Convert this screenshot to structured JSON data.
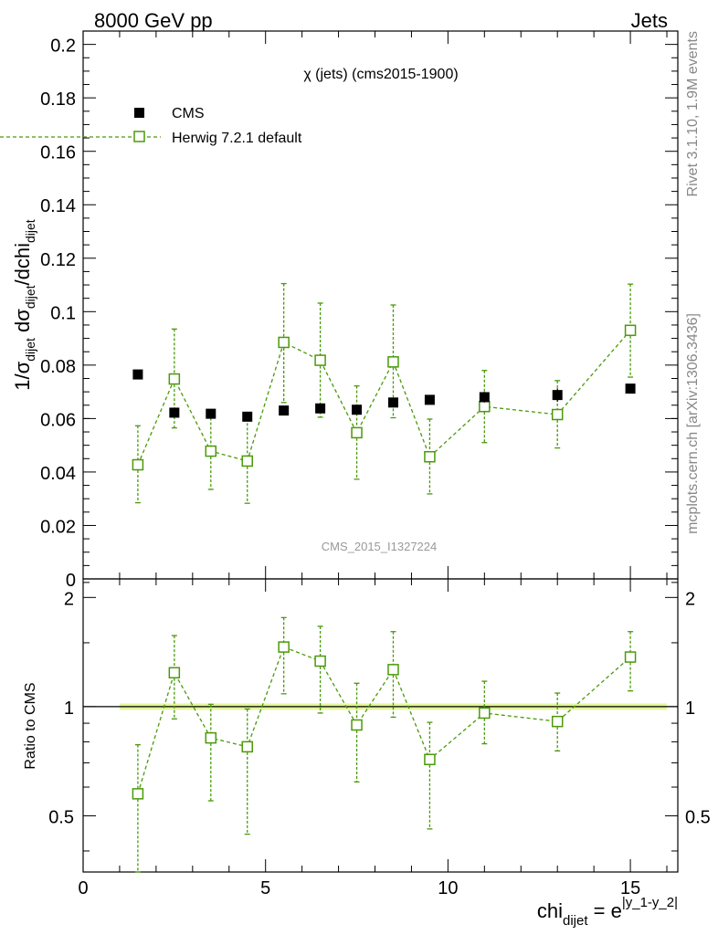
{
  "header": {
    "left": "8000 GeV pp",
    "right": "Jets"
  },
  "side_labels": {
    "rivet": "Rivet 3.1.10,  1.9M events",
    "mcplots": "mcplots.cern.ch [arXiv:1306.3436]"
  },
  "chart_data": [
    {
      "type": "scatter",
      "panel": "main",
      "title": "χ (jets) (cms2015-1900)",
      "ylabel": "1/σ_dijet dσ_dijet/dchi_dijet",
      "ylabel_parts": {
        "a": "1/σ",
        "a_sub": "dijet",
        "b": " dσ",
        "b_sub": "dijet",
        "c": "/dchi",
        "c_sub": "dijet"
      },
      "watermark": "CMS_2015_I1327224",
      "xlim": [
        0,
        16.3
      ],
      "ylim": [
        0,
        0.205
      ],
      "yticks": [
        0,
        0.02,
        0.04,
        0.06,
        0.08,
        0.1,
        0.12,
        0.14,
        0.16,
        0.18,
        0.2
      ],
      "ytick_labels": [
        "0",
        "0.02",
        "0.04",
        "0.06",
        "0.08",
        "0.1",
        "0.12",
        "0.14",
        "0.16",
        "0.18",
        "0.2"
      ],
      "legend_position": "top-left",
      "colors": {
        "cms": "#000000",
        "herwig": "#4a9a0a"
      },
      "series": [
        {
          "name": "CMS",
          "style": "filled-square",
          "x": [
            1.5,
            2.5,
            3.5,
            4.5,
            5.5,
            6.5,
            7.5,
            8.5,
            9.5,
            11.0,
            13.0,
            15.0
          ],
          "y": [
            0.0765,
            0.0622,
            0.0618,
            0.0607,
            0.063,
            0.0638,
            0.0633,
            0.066,
            0.067,
            0.068,
            0.0688,
            0.0712
          ],
          "yerr": [
            0.001,
            0.0015,
            0.0015,
            0.0015,
            0.0015,
            0.0015,
            0.0015,
            0.0018,
            0.0015,
            0.002,
            0.0025,
            0.0015
          ]
        },
        {
          "name": "Herwig 7.2.1 default",
          "style": "open-square-dashed",
          "x": [
            1.5,
            2.5,
            3.5,
            4.5,
            5.5,
            6.5,
            7.5,
            8.5,
            9.5,
            11.0,
            13.0,
            15.0
          ],
          "y": [
            0.0427,
            0.0748,
            0.0478,
            0.0441,
            0.0885,
            0.0818,
            0.0547,
            0.0812,
            0.0457,
            0.0645,
            0.0615,
            0.093
          ],
          "ylo": [
            0.0285,
            0.0565,
            0.0335,
            0.0283,
            0.066,
            0.0605,
            0.0373,
            0.0603,
            0.0318,
            0.051,
            0.049,
            0.0755
          ],
          "yhi": [
            0.0573,
            0.0935,
            0.062,
            0.06,
            0.1105,
            0.1032,
            0.0722,
            0.1025,
            0.0598,
            0.078,
            0.0742,
            0.1103
          ]
        }
      ]
    },
    {
      "type": "scatter",
      "panel": "ratio",
      "ylabel": "Ratio to CMS",
      "xlabel": "chi_dijet = e^|y_1-y_2|",
      "xlabel_parts": {
        "a": "chi",
        "a_sub": "dijet",
        "b": " = e",
        "b_sup": "|y_1-y_2|"
      },
      "xlim": [
        0,
        16.3
      ],
      "ylim": [
        0.35,
        2.25
      ],
      "yticks": [
        0.5,
        1,
        2
      ],
      "ytick_labels": [
        "0.5",
        "1",
        "2"
      ],
      "xticks": [
        0,
        5,
        10,
        15
      ],
      "xtick_labels": [
        "0",
        "5",
        "10",
        "15"
      ],
      "reference": {
        "y": 1,
        "band_lo": 0.98,
        "band_hi": 1.02,
        "x_from": 1.0,
        "x_to": 16.0
      },
      "series": [
        {
          "name": "Herwig 7.2.1 default",
          "x": [
            1.5,
            2.5,
            3.5,
            4.5,
            5.5,
            6.5,
            7.5,
            8.5,
            9.5,
            11.0,
            13.0,
            15.0
          ],
          "y": [
            0.575,
            1.24,
            0.82,
            0.775,
            1.46,
            1.335,
            0.89,
            1.265,
            0.715,
            0.96,
            0.91,
            1.37
          ],
          "ylo": [
            0.35,
            0.925,
            0.55,
            0.445,
            1.085,
            0.96,
            0.62,
            0.935,
            0.46,
            0.79,
            0.755,
            1.105
          ],
          "yhi": [
            0.785,
            1.57,
            1.015,
            0.985,
            1.76,
            1.665,
            1.16,
            1.61,
            0.905,
            1.175,
            1.09,
            1.61
          ]
        }
      ]
    }
  ]
}
